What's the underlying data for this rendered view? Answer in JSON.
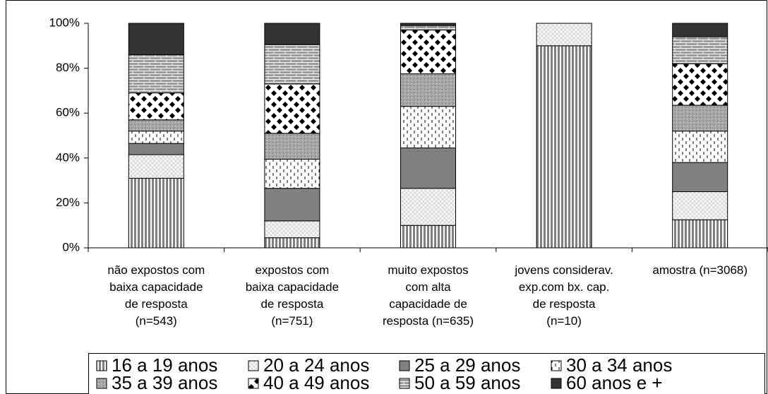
{
  "chart_data": {
    "type": "stacked-bar",
    "categories": [
      "não expostos com\nbaixa capacidade\nde resposta\n(n=543)",
      "expostos com\nbaixa capacidade\nde resposta\n(n=751)",
      "muito expostos\ncom alta\ncapacidade de\nresposta (n=635)",
      "jovens considerav.\nexp.com bx. cap.\nde resposta\n(n=10)",
      "amostra (n=3068)"
    ],
    "series": [
      {
        "name": "16 a 19 anos",
        "color": "#808080",
        "pattern": "vertical-lines",
        "values": [
          31,
          4.5,
          10,
          90,
          12.5
        ]
      },
      {
        "name": "20 a 24 anos",
        "color": "#d9d9d9",
        "pattern": "crosshatch",
        "values": [
          10.5,
          7.5,
          16.5,
          10,
          12.5
        ]
      },
      {
        "name": "25 a 29 anos",
        "color": "#808080",
        "pattern": "solid",
        "values": [
          5,
          14.5,
          18,
          0,
          13
        ]
      },
      {
        "name": "30 a 34 anos",
        "color": "#ffffff",
        "pattern": "dashes",
        "values": [
          5.5,
          13,
          18.5,
          0,
          14
        ]
      },
      {
        "name": "35 a 39 anos",
        "color": "#a6a6a6",
        "pattern": "dots",
        "values": [
          5,
          11.5,
          14.5,
          0,
          11.5
        ]
      },
      {
        "name": "40 a 49 anos",
        "color": "#000000",
        "pattern": "diamonds",
        "values": [
          12,
          22,
          19.5,
          0,
          18.5
        ]
      },
      {
        "name": "50 a 59 anos",
        "color": "#999999",
        "pattern": "bricks",
        "values": [
          17,
          17.5,
          2,
          0,
          12
        ]
      },
      {
        "name": "60 anos e +",
        "color": "#333333",
        "pattern": "solid",
        "values": [
          14,
          9.5,
          1,
          0,
          6
        ]
      }
    ],
    "ylim": [
      0,
      100
    ],
    "yticks": [
      {
        "value": 0,
        "label": "0%"
      },
      {
        "value": 20,
        "label": "20%"
      },
      {
        "value": 40,
        "label": "40%"
      },
      {
        "value": 60,
        "label": "60%"
      },
      {
        "value": 80,
        "label": "80%"
      },
      {
        "value": 100,
        "label": "100%"
      }
    ],
    "legend": "bottom"
  }
}
